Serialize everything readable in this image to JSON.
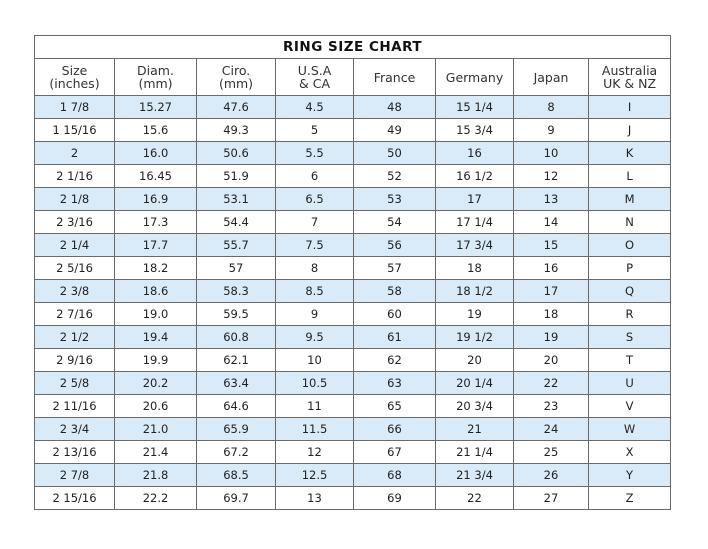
{
  "title": "RING SIZE CHART",
  "headers": [
    [
      "Size",
      "(inches)"
    ],
    [
      "Diam.",
      "(mm)"
    ],
    [
      "Ciro.",
      "(mm)"
    ],
    [
      "U.S.A",
      "& CA"
    ],
    [
      "France",
      ""
    ],
    [
      "Germany",
      ""
    ],
    [
      "Japan",
      ""
    ],
    [
      "Australia",
      "UK & NZ"
    ]
  ],
  "row_fill_color": "#d9eaf8",
  "rows": [
    [
      "1 7/8",
      "15.27",
      "47.6",
      "4.5",
      "48",
      "15 1/4",
      "8",
      "I"
    ],
    [
      "1 15/16",
      "15.6",
      "49.3",
      "5",
      "49",
      "15 3/4",
      "9",
      "J"
    ],
    [
      "2",
      "16.0",
      "50.6",
      "5.5",
      "50",
      "16",
      "10",
      "K"
    ],
    [
      "2 1/16",
      "16.45",
      "51.9",
      "6",
      "52",
      "16 1/2",
      "12",
      "L"
    ],
    [
      "2 1/8",
      "16.9",
      "53.1",
      "6.5",
      "53",
      "17",
      "13",
      "M"
    ],
    [
      "2 3/16",
      "17.3",
      "54.4",
      "7",
      "54",
      "17 1/4",
      "14",
      "N"
    ],
    [
      "2 1/4",
      "17.7",
      "55.7",
      "7.5",
      "56",
      "17 3/4",
      "15",
      "O"
    ],
    [
      "2 5/16",
      "18.2",
      "57",
      "8",
      "57",
      "18",
      "16",
      "P"
    ],
    [
      "2 3/8",
      "18.6",
      "58.3",
      "8.5",
      "58",
      "18 1/2",
      "17",
      "Q"
    ],
    [
      "2 7/16",
      "19.0",
      "59.5",
      "9",
      "60",
      "19",
      "18",
      "R"
    ],
    [
      "2 1/2",
      "19.4",
      "60.8",
      "9.5",
      "61",
      "19 1/2",
      "19",
      "S"
    ],
    [
      "2 9/16",
      "19.9",
      "62.1",
      "10",
      "62",
      "20",
      "20",
      "T"
    ],
    [
      "2 5/8",
      "20.2",
      "63.4",
      "10.5",
      "63",
      "20 1/4",
      "22",
      "U"
    ],
    [
      "2 11/16",
      "20.6",
      "64.6",
      "11",
      "65",
      "20 3/4",
      "23",
      "V"
    ],
    [
      "2 3/4",
      "21.0",
      "65.9",
      "11.5",
      "66",
      "21",
      "24",
      "W"
    ],
    [
      "2 13/16",
      "21.4",
      "67.2",
      "12",
      "67",
      "21 1/4",
      "25",
      "X"
    ],
    [
      "2 7/8",
      "21.8",
      "68.5",
      "12.5",
      "68",
      "21 3/4",
      "26",
      "Y"
    ],
    [
      "2 15/16",
      "22.2",
      "69.7",
      "13",
      "69",
      "22",
      "27",
      "Z"
    ]
  ]
}
